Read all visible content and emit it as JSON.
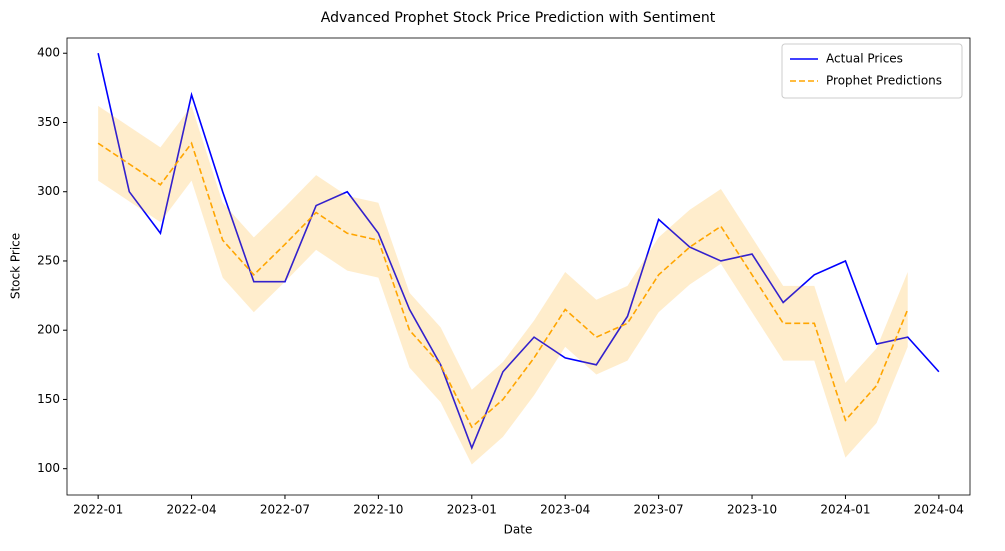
{
  "chart_data": {
    "type": "line",
    "title": "Advanced Prophet Stock Price Prediction with Sentiment",
    "xlabel": "Date",
    "ylabel": "Stock Price",
    "x": [
      "2022-01",
      "2022-02",
      "2022-03",
      "2022-04",
      "2022-05",
      "2022-06",
      "2022-07",
      "2022-08",
      "2022-09",
      "2022-10",
      "2022-11",
      "2022-12",
      "2023-01",
      "2023-02",
      "2023-03",
      "2023-04",
      "2023-05",
      "2023-06",
      "2023-07",
      "2023-08",
      "2023-09",
      "2023-10",
      "2023-11",
      "2023-12",
      "2024-01",
      "2024-02",
      "2024-03",
      "2024-04"
    ],
    "series": [
      {
        "name": "Actual Prices",
        "color": "#0000ff",
        "dashed": false,
        "values": [
          400,
          300,
          270,
          370,
          300,
          235,
          235,
          290,
          300,
          270,
          215,
          175,
          115,
          170,
          195,
          180,
          175,
          210,
          280,
          260,
          250,
          255,
          220,
          240,
          250,
          190,
          195,
          170
        ]
      },
      {
        "name": "Prophet Predictions",
        "color": "#ffa500",
        "dashed": true,
        "values": [
          335,
          320,
          305,
          335,
          265,
          240,
          262,
          285,
          270,
          265,
          200,
          175,
          130,
          150,
          180,
          215,
          195,
          205,
          240,
          260,
          275,
          240,
          205,
          205,
          135,
          160,
          215,
          null
        ],
        "lower": [
          308,
          293,
          278,
          308,
          238,
          213,
          235,
          258,
          243,
          238,
          173,
          148,
          103,
          123,
          153,
          188,
          168,
          178,
          213,
          233,
          248,
          213,
          178,
          178,
          108,
          133,
          188,
          null
        ],
        "upper": [
          362,
          347,
          332,
          362,
          292,
          267,
          289,
          312,
          297,
          292,
          227,
          202,
          157,
          177,
          207,
          242,
          222,
          232,
          267,
          287,
          302,
          267,
          232,
          232,
          162,
          187,
          242,
          null
        ]
      }
    ],
    "xlim": [
      "2021-12",
      "2024-05"
    ],
    "xticks": [
      "2022-01",
      "2022-04",
      "2022-07",
      "2022-10",
      "2023-01",
      "2023-04",
      "2023-07",
      "2023-10",
      "2024-01",
      "2024-04"
    ],
    "ylim": [
      81,
      411
    ],
    "yticks": [
      100,
      150,
      200,
      250,
      300,
      350,
      400
    ],
    "legend": "upper right",
    "band_color": "#ffa500",
    "grid": false
  }
}
